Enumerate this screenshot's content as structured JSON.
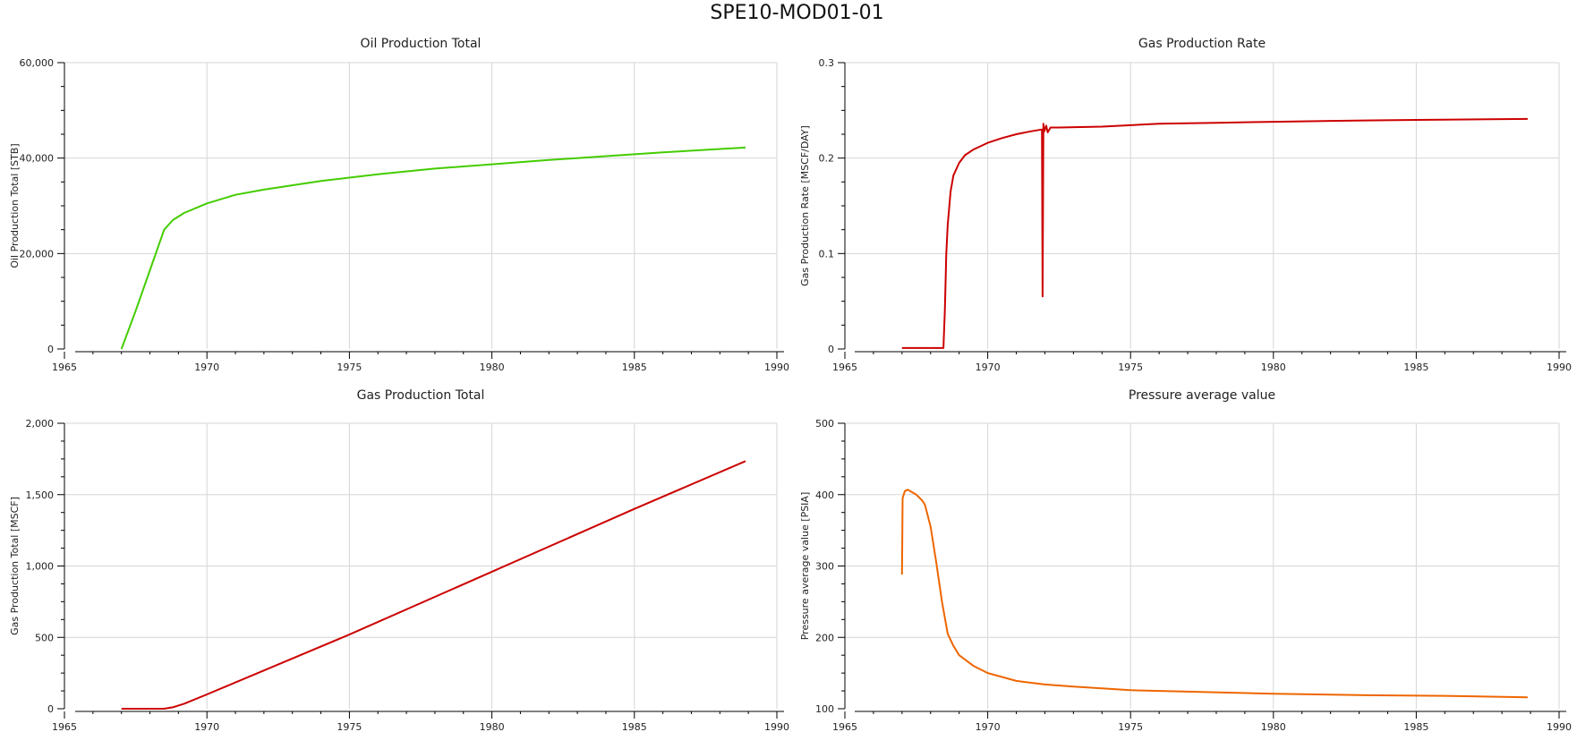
{
  "page": {
    "title": "SPE10-MOD01-01"
  },
  "colors": {
    "grid": "#d6d6d6",
    "axis": "#000000"
  },
  "chart_data": [
    {
      "type": "line",
      "title": "Oil Production Total",
      "xlabel": "",
      "ylabel": "Oil Production Total [STB]",
      "xlim": [
        1965,
        1990
      ],
      "ylim": [
        0,
        60000
      ],
      "xticks": [
        1965,
        1970,
        1975,
        1980,
        1985,
        1990
      ],
      "xtick_labels": [
        "1965",
        "1970",
        "1975",
        "1980",
        "1985",
        "1990"
      ],
      "yticks": [
        0,
        20000,
        40000,
        60000
      ],
      "ytick_labels": [
        "0",
        "20,000",
        "40,000",
        "60,000"
      ],
      "grid": true,
      "series": [
        {
          "color": "#44cc00",
          "x": [
            1967.0,
            1967.5,
            1968.0,
            1968.5,
            1968.8,
            1969.2,
            1970.0,
            1971.0,
            1972.0,
            1974.0,
            1976.0,
            1978.0,
            1980.0,
            1982.0,
            1984.0,
            1986.0,
            1988.0,
            1988.9
          ],
          "y": [
            0,
            8000,
            16500,
            25000,
            27000,
            28500,
            30500,
            32300,
            33400,
            35200,
            36600,
            37800,
            38700,
            39600,
            40400,
            41200,
            41900,
            42200
          ]
        }
      ]
    },
    {
      "type": "line",
      "title": "Gas Production Rate",
      "xlabel": "",
      "ylabel": "Gas Production Rate [MSCF/DAY]",
      "xlim": [
        1965,
        1990
      ],
      "ylim": [
        0,
        0.3
      ],
      "xticks": [
        1965,
        1970,
        1975,
        1980,
        1985,
        1990
      ],
      "xtick_labels": [
        "1965",
        "1970",
        "1975",
        "1980",
        "1985",
        "1990"
      ],
      "yticks": [
        0,
        0.1,
        0.2,
        0.3
      ],
      "ytick_labels": [
        "0",
        "0.1",
        "0.2",
        "0.3"
      ],
      "grid": true,
      "series": [
        {
          "color": "#cc0000",
          "x": [
            1967.0,
            1968.45,
            1968.5,
            1968.55,
            1968.6,
            1968.7,
            1968.8,
            1969.0,
            1969.2,
            1969.5,
            1970.0,
            1970.5,
            1971.0,
            1971.5,
            1971.9,
            1971.92,
            1971.95,
            1971.98,
            1972.05,
            1972.1,
            1972.2,
            1972.5,
            1974.0,
            1976.0,
            1978.0,
            1980.0,
            1982.0,
            1985.0,
            1988.9
          ],
          "y": [
            0.001,
            0.001,
            0.04,
            0.1,
            0.13,
            0.165,
            0.182,
            0.195,
            0.203,
            0.209,
            0.216,
            0.221,
            0.225,
            0.228,
            0.23,
            0.055,
            0.236,
            0.228,
            0.234,
            0.227,
            0.232,
            0.232,
            0.233,
            0.236,
            0.237,
            0.238,
            0.239,
            0.24,
            0.241
          ]
        }
      ]
    },
    {
      "type": "line",
      "title": "Gas Production Total",
      "xlabel": "",
      "ylabel": "Gas Production Total [MSCF]",
      "xlim": [
        1965,
        1990
      ],
      "ylim": [
        0,
        2000
      ],
      "xticks": [
        1965,
        1970,
        1975,
        1980,
        1985,
        1990
      ],
      "xtick_labels": [
        "1965",
        "1970",
        "1975",
        "1980",
        "1985",
        "1990"
      ],
      "yticks": [
        0,
        500,
        1000,
        1500,
        2000
      ],
      "ytick_labels": [
        "0",
        "500",
        "1,000",
        "1,500",
        "2,000"
      ],
      "grid": true,
      "series": [
        {
          "color": "#cc0000",
          "x": [
            1967.0,
            1968.5,
            1968.8,
            1969.2,
            1970.0,
            1975.0,
            1980.0,
            1985.0,
            1988.9
          ],
          "y": [
            0,
            0,
            10,
            35,
            100,
            520,
            960,
            1400,
            1735
          ]
        }
      ]
    },
    {
      "type": "line",
      "title": "Pressure average value",
      "xlabel": "",
      "ylabel": "Pressure average value [PSIA]",
      "xlim": [
        1965,
        1990
      ],
      "ylim": [
        100,
        500
      ],
      "xticks": [
        1965,
        1970,
        1975,
        1980,
        1985,
        1990
      ],
      "xtick_labels": [
        "1965",
        "1970",
        "1975",
        "1980",
        "1985",
        "1990"
      ],
      "yticks": [
        100,
        200,
        300,
        400,
        500
      ],
      "ytick_labels": [
        "100",
        "200",
        "300",
        "400",
        "500"
      ],
      "grid": true,
      "series": [
        {
          "color": "#ee6600",
          "x": [
            1967.0,
            1967.02,
            1967.1,
            1967.2,
            1967.5,
            1967.7,
            1967.8,
            1968.0,
            1968.2,
            1968.4,
            1968.6,
            1968.8,
            1969.0,
            1969.5,
            1970.0,
            1971.0,
            1972.0,
            1973.0,
            1975.0,
            1977.0,
            1980.0,
            1983.0,
            1986.0,
            1988.9
          ],
          "y": [
            288,
            395,
            405,
            407,
            400,
            392,
            386,
            355,
            305,
            250,
            205,
            188,
            175,
            160,
            150,
            139,
            134,
            131,
            126,
            124,
            121,
            119,
            118,
            116
          ]
        }
      ]
    }
  ]
}
